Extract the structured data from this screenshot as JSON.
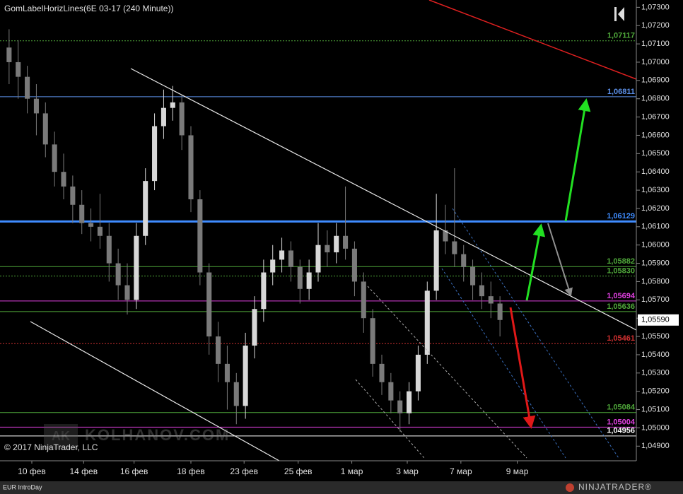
{
  "chart_data": {
    "type": "candlestick",
    "title": "GomLabelHorizLines(6E 03-17 (240 Minute))",
    "x": [
      2,
      4,
      6,
      8,
      10,
      12,
      14,
      16,
      18,
      20,
      22,
      24,
      26,
      28,
      30,
      32,
      34,
      36,
      38,
      40,
      42,
      44,
      46,
      48,
      50,
      52,
      54,
      56,
      58,
      60,
      62,
      64,
      66,
      68,
      70,
      72,
      74,
      76,
      78,
      80,
      82,
      84,
      86,
      88,
      90,
      92,
      94,
      96,
      98,
      100,
      102,
      104,
      106,
      108,
      110
    ],
    "open": [
      1.0708,
      1.07,
      1.0692,
      1.068,
      1.0672,
      1.0655,
      1.064,
      1.0632,
      1.0622,
      1.0612,
      1.061,
      1.0605,
      1.059,
      1.0578,
      1.057,
      1.0605,
      1.0635,
      1.0665,
      1.0675,
      1.0678,
      1.066,
      1.0625,
      1.0585,
      1.055,
      1.0535,
      1.0525,
      1.0512,
      1.0545,
      1.0565,
      1.0585,
      1.0592,
      1.0597,
      1.0588,
      1.0576,
      1.0585,
      1.06,
      1.0596,
      1.0605,
      1.0598,
      1.058,
      1.056,
      1.0535,
      1.0525,
      1.0515,
      1.0508,
      1.052,
      1.054,
      1.0575,
      1.0608,
      1.0602,
      1.0595,
      1.0588,
      1.0578,
      1.0572,
      1.0568
    ],
    "high": [
      1.0718,
      1.0712,
      1.0698,
      1.0688,
      1.0678,
      1.0662,
      1.065,
      1.0638,
      1.063,
      1.062,
      1.0628,
      1.0612,
      1.0598,
      1.059,
      1.0612,
      1.0642,
      1.0672,
      1.0685,
      1.0687,
      1.0682,
      1.0665,
      1.063,
      1.059,
      1.0558,
      1.0545,
      1.053,
      1.0552,
      1.0572,
      1.0592,
      1.06,
      1.0604,
      1.0602,
      1.0592,
      1.0592,
      1.0612,
      1.0608,
      1.0612,
      1.0632,
      1.0602,
      1.0585,
      1.0565,
      1.054,
      1.053,
      1.052,
      1.0525,
      1.0545,
      1.058,
      1.0628,
      1.0622,
      1.0642,
      1.06,
      1.0592,
      1.0585,
      1.058,
      1.0572
    ],
    "low": [
      1.0688,
      1.068,
      1.0672,
      1.066,
      1.0648,
      1.0632,
      1.0625,
      1.0612,
      1.0606,
      1.0602,
      1.0598,
      1.058,
      1.057,
      1.0562,
      1.0565,
      1.06,
      1.063,
      1.0658,
      1.0668,
      1.0652,
      1.0618,
      1.0578,
      1.054,
      1.0525,
      1.051,
      1.0502,
      1.0505,
      1.0538,
      1.0558,
      1.0578,
      1.0585,
      1.058,
      1.0568,
      1.057,
      1.058,
      1.0588,
      1.059,
      1.0592,
      1.0572,
      1.0552,
      1.0528,
      1.0518,
      1.0508,
      1.0498,
      1.0502,
      1.0515,
      1.0535,
      1.057,
      1.0595,
      1.0588,
      1.058,
      1.057,
      1.0565,
      1.056,
      1.055
    ],
    "close": [
      1.07,
      1.0692,
      1.068,
      1.0672,
      1.0655,
      1.064,
      1.0632,
      1.0622,
      1.0612,
      1.061,
      1.0605,
      1.059,
      1.0578,
      1.057,
      1.0605,
      1.0635,
      1.0665,
      1.0675,
      1.0678,
      1.066,
      1.0625,
      1.0585,
      1.055,
      1.0535,
      1.0525,
      1.0512,
      1.0545,
      1.0565,
      1.0585,
      1.0592,
      1.0597,
      1.0588,
      1.0576,
      1.0585,
      1.06,
      1.0596,
      1.0605,
      1.0598,
      1.058,
      1.056,
      1.0535,
      1.0525,
      1.0515,
      1.0508,
      1.052,
      1.054,
      1.0575,
      1.0608,
      1.0602,
      1.0595,
      1.0588,
      1.0578,
      1.0572,
      1.0568,
      1.0559
    ],
    "up_color": "#d8d8d8",
    "down_color": "#7a7a7a",
    "xlim": [
      0,
      140
    ],
    "xticks": [
      {
        "value": 7,
        "label": "10 фев"
      },
      {
        "value": 18.4,
        "label": "14 фев"
      },
      {
        "value": 29.5,
        "label": "16 фев"
      },
      {
        "value": 42,
        "label": "18 фев"
      },
      {
        "value": 53.7,
        "label": "23 фев"
      },
      {
        "value": 65.6,
        "label": "25 фев"
      },
      {
        "value": 77.4,
        "label": "1 мар"
      },
      {
        "value": 89.6,
        "label": "3 мар"
      },
      {
        "value": 101.4,
        "label": "7 мар"
      },
      {
        "value": 113.8,
        "label": "9 мар"
      }
    ],
    "ylim": [
      1.0482,
      1.0734
    ],
    "yticks": [
      {
        "value": 1.049,
        "label": "1,04900"
      },
      {
        "value": 1.05,
        "label": "1,05000"
      },
      {
        "value": 1.051,
        "label": "1,05100"
      },
      {
        "value": 1.052,
        "label": "1,05200"
      },
      {
        "value": 1.053,
        "label": "1,05300"
      },
      {
        "value": 1.054,
        "label": "1,05400"
      },
      {
        "value": 1.055,
        "label": "1,05500"
      },
      {
        "value": 1.056,
        "label": "1,05600"
      },
      {
        "value": 1.057,
        "label": "1,05700"
      },
      {
        "value": 1.058,
        "label": "1,05800"
      },
      {
        "value": 1.059,
        "label": "1,05900"
      },
      {
        "value": 1.06,
        "label": "1,06000"
      },
      {
        "value": 1.061,
        "label": "1,06100"
      },
      {
        "value": 1.062,
        "label": "1,06200"
      },
      {
        "value": 1.063,
        "label": "1,06300"
      },
      {
        "value": 1.064,
        "label": "1,06400"
      },
      {
        "value": 1.065,
        "label": "1,06500"
      },
      {
        "value": 1.066,
        "label": "1,06600"
      },
      {
        "value": 1.067,
        "label": "1,06700"
      },
      {
        "value": 1.068,
        "label": "1,06800"
      },
      {
        "value": 1.069,
        "label": "1,06900"
      },
      {
        "value": 1.07,
        "label": "1,07000"
      },
      {
        "value": 1.071,
        "label": "1,07100"
      },
      {
        "value": 1.072,
        "label": "1,07200"
      },
      {
        "value": 1.073,
        "label": "1,07300"
      }
    ],
    "levels": [
      {
        "value": 1.07117,
        "label": "1,07117",
        "color": "#4fa83a",
        "style": "dotted",
        "width": 1
      },
      {
        "value": 1.06811,
        "label": "1,06811",
        "color": "#5b8fe8",
        "style": "solid",
        "width": 1
      },
      {
        "value": 1.06129,
        "label": "1,06129",
        "color": "#3f8cff",
        "style": "solid",
        "width": 3
      },
      {
        "value": 1.05882,
        "label": "1,05882",
        "color": "#4fa83a",
        "style": "solid",
        "width": 1
      },
      {
        "value": 1.0583,
        "label": "1,05830",
        "color": "#4fa83a",
        "style": "dotted",
        "width": 1
      },
      {
        "value": 1.05694,
        "label": "1,05694",
        "color": "#e040e0",
        "style": "solid",
        "width": 1
      },
      {
        "value": 1.05636,
        "label": "1,05636",
        "color": "#4fa83a",
        "style": "solid",
        "width": 1
      },
      {
        "value": 1.05461,
        "label": "1,05461",
        "color": "#d03030",
        "style": "dotted",
        "width": 1
      },
      {
        "value": 1.05084,
        "label": "1,05084",
        "color": "#4fa83a",
        "style": "solid",
        "width": 1
      },
      {
        "value": 1.05004,
        "label": "1,05004",
        "color": "#e040e0",
        "style": "solid",
        "width": 1
      },
      {
        "value": 1.04956,
        "label": "1,04956",
        "color": "#ffffff",
        "style": "solid",
        "width": 1
      }
    ],
    "last_price": {
      "value": 1.0559,
      "label": "1,05590"
    },
    "copyright": "© 2017 NinjaTrader, LLC",
    "watermark_logo": "AK",
    "watermark": "KOLHANOV.COM",
    "footer_left": "EUR IntroDay",
    "brand": "NINJATRADER®"
  }
}
